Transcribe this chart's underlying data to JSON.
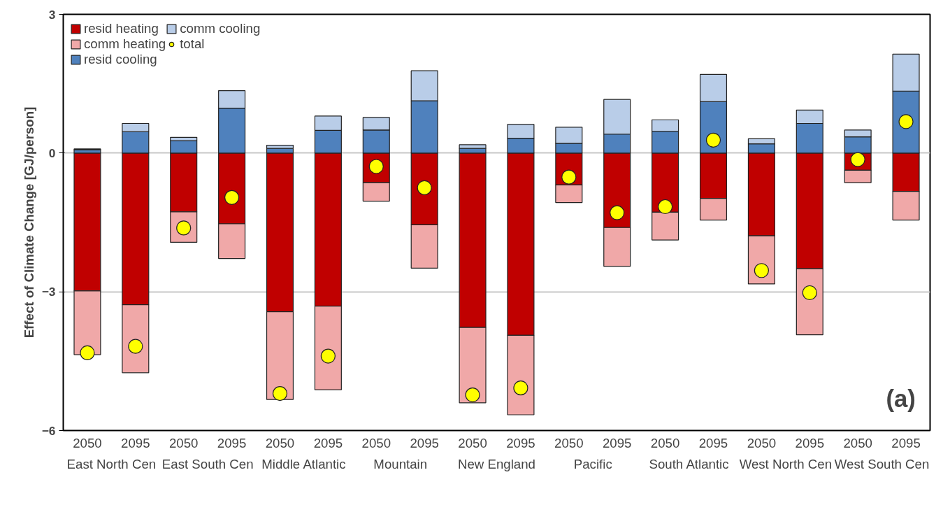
{
  "chart_data": {
    "type": "bar",
    "stacked": true,
    "ylabel": "Effect of Climate Change [GJ/person]",
    "categories": [
      "2050",
      "2095",
      "2050",
      "2095",
      "2050",
      "2095",
      "2050",
      "2095",
      "2050",
      "2095",
      "2050",
      "2095",
      "2050",
      "2095",
      "2050",
      "2095",
      "2050",
      "2095"
    ],
    "annotations": [
      "East North Cen",
      "East South Cen",
      "Middle Atlantic",
      "Mountain",
      "New England",
      "Pacific",
      "South Atlantic",
      "West North Cen",
      "West South Cen",
      "(a)"
    ],
    "series": [
      {
        "name": "resid heating",
        "color": "#c00000",
        "values": [
          -2.98,
          -3.28,
          -1.27,
          -1.53,
          -3.43,
          -3.31,
          -0.64,
          -1.55,
          -3.77,
          -3.94,
          -0.69,
          -1.61,
          -1.28,
          -0.98,
          -1.79,
          -2.5,
          -0.37,
          -0.83
        ]
      },
      {
        "name": "comm heating",
        "color": "#f0a8a8",
        "values": [
          -1.38,
          -1.47,
          -0.66,
          -0.75,
          -1.9,
          -1.81,
          -0.4,
          -0.94,
          -1.63,
          -1.72,
          -0.38,
          -0.84,
          -0.6,
          -0.47,
          -1.04,
          -1.43,
          -0.27,
          -0.62
        ]
      },
      {
        "name": "resid cooling",
        "color": "#4f81bd",
        "values": [
          0.07,
          0.46,
          0.27,
          0.97,
          0.1,
          0.49,
          0.5,
          1.13,
          0.1,
          0.32,
          0.21,
          0.41,
          0.47,
          1.11,
          0.2,
          0.64,
          0.35,
          1.34
        ]
      },
      {
        "name": "comm cooling",
        "color": "#b9cde8",
        "values": [
          0.02,
          0.18,
          0.07,
          0.38,
          0.07,
          0.31,
          0.27,
          0.65,
          0.08,
          0.3,
          0.35,
          0.75,
          0.25,
          0.59,
          0.11,
          0.29,
          0.15,
          0.8
        ]
      },
      {
        "name": "total",
        "type": "scatter",
        "color": "#ffff00",
        "values": [
          -4.32,
          -4.18,
          -1.62,
          -0.96,
          -5.2,
          -4.39,
          -0.29,
          -0.75,
          -5.23,
          -5.08,
          -0.52,
          -1.29,
          -1.16,
          0.28,
          -2.54,
          -3.02,
          -0.14,
          0.68
        ]
      }
    ],
    "ylim": [
      -6,
      3
    ],
    "yticks": [
      -6,
      -3,
      0,
      3
    ],
    "grid": "y",
    "legend": "top left",
    "marker": "circle"
  }
}
